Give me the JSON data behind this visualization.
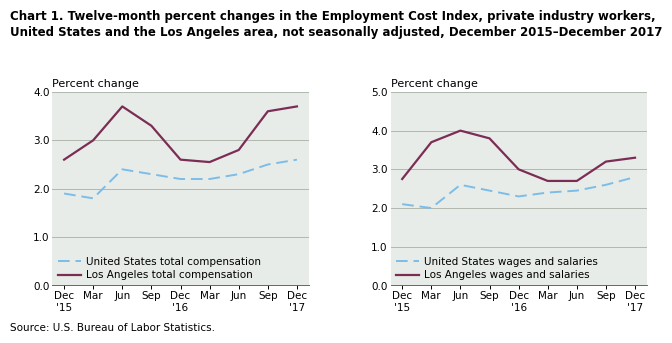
{
  "title_line1": "Chart 1. Twelve-month percent changes in the Employment Cost Index, private industry workers,",
  "title_line2": "United States and the Los Angeles area, not seasonally adjusted, December 2015–December 2017",
  "source": "Source: U.S. Bureau of Labor Statistics.",
  "x_labels": [
    "Dec\n'15",
    "Mar",
    "Jun",
    "Sep",
    "Dec\n'16",
    "Mar",
    "Jun",
    "Sep",
    "Dec\n'17"
  ],
  "panel1": {
    "ylabel": "Percent change",
    "ylim": [
      0.0,
      4.0
    ],
    "yticks": [
      0.0,
      1.0,
      2.0,
      3.0,
      4.0
    ],
    "us_total_comp": [
      1.9,
      1.8,
      2.4,
      2.3,
      2.2,
      2.2,
      2.3,
      2.5,
      2.6
    ],
    "la_total_comp": [
      2.6,
      3.0,
      3.7,
      3.3,
      2.6,
      2.55,
      2.8,
      3.6,
      3.7
    ],
    "legend1": "United States total compensation",
    "legend2": "Los Angeles total compensation"
  },
  "panel2": {
    "ylabel": "Percent change",
    "ylim": [
      0.0,
      5.0
    ],
    "yticks": [
      0.0,
      1.0,
      2.0,
      3.0,
      4.0,
      5.0
    ],
    "us_wages": [
      2.1,
      2.0,
      2.6,
      2.45,
      2.3,
      2.4,
      2.45,
      2.6,
      2.8
    ],
    "la_wages": [
      2.75,
      3.7,
      4.0,
      3.8,
      3.0,
      2.7,
      2.7,
      3.2,
      3.3
    ],
    "legend1": "United States wages and salaries",
    "legend2": "Los Angeles wages and salaries"
  },
  "us_color": "#7bbde8",
  "la_color": "#7b2d55",
  "grid_color": "#b0b8b0",
  "bg_color": "#e8ece8",
  "title_fontsize": 8.5,
  "tick_fontsize": 7.5,
  "legend_fontsize": 7.5,
  "source_fontsize": 7.5,
  "ylabel_fontsize": 8.0
}
